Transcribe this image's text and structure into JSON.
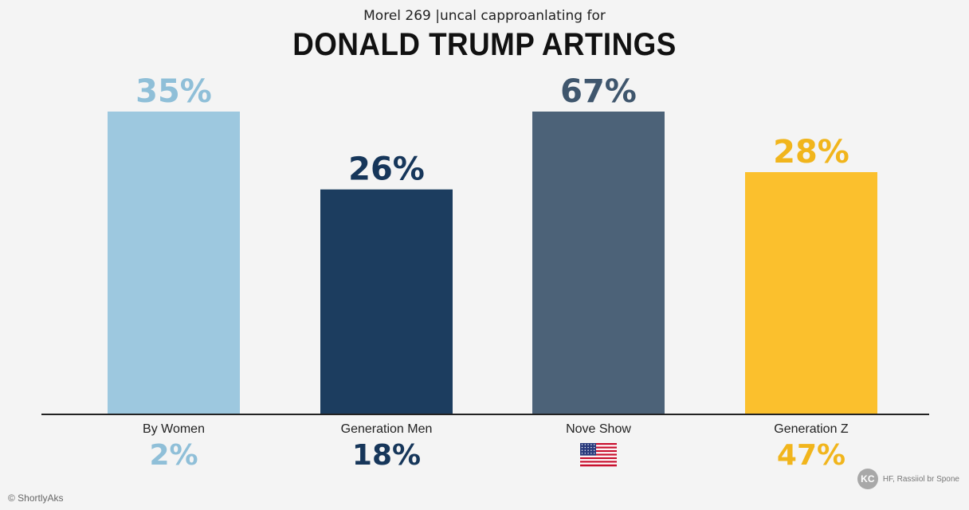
{
  "chart_data": {
    "type": "bar",
    "subtitle": "Morel 269 |uncal capproanlating for",
    "title": "DONALD TRUMP ARTINGS",
    "xlabel": "",
    "ylabel": "",
    "ylim": [
      0,
      35
    ],
    "grid": false,
    "categories": [
      "By Women",
      "Generation Men",
      "Nove Show",
      "Generation Z"
    ],
    "values": [
      35,
      26,
      67,
      28
    ],
    "value_labels": [
      "35%",
      "26%",
      "67%",
      "28%"
    ],
    "secondary_labels": [
      "2%",
      "18%",
      "",
      "47%"
    ],
    "colors": [
      "#9dc8df",
      "#1c3d5f",
      "#4c6278",
      "#fbc02d"
    ],
    "value_label_colors": [
      "#8fbfd8",
      "#16365a",
      "#3f566d",
      "#f1b51c"
    ],
    "category_icons": [
      "",
      "",
      "us-flag-icon",
      ""
    ]
  },
  "footer": {
    "source": "© ShortlyAks",
    "badge": "KC",
    "credit": "HF, Rassiiol br Spone"
  }
}
